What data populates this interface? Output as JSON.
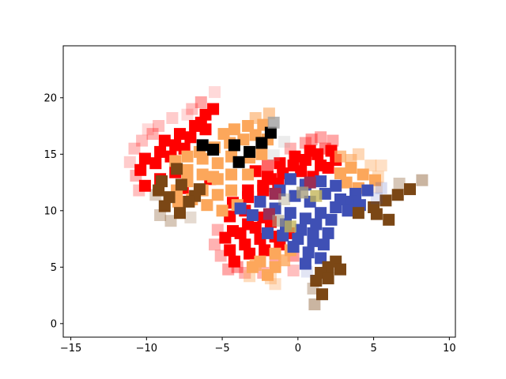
{
  "chart_data": {
    "type": "scatter",
    "title": "",
    "xlabel": "",
    "ylabel": "",
    "xlim": [
      -15.5,
      10.4
    ],
    "ylim": [
      -1.2,
      24.6
    ],
    "xticks": [
      -15,
      -10,
      -5,
      0,
      5,
      10
    ],
    "yticks": [
      0,
      5,
      10,
      15,
      20
    ],
    "grid": false,
    "legend": "none",
    "marker": "square",
    "palette": {
      "R": "#ff0000",
      "O": "#fca75b",
      "B": "#3f50b5",
      "K": "#000000",
      "N": "#7b4715",
      "C": "#9b2e55",
      "G": "#a89e7e",
      "Y": "#c4b55a",
      "S": "#a0a0a0"
    },
    "points": [
      [
        "R",
        -10.1,
        12.2,
        1
      ],
      [
        "R",
        -9.1,
        12.8,
        1
      ],
      [
        "R",
        -8.1,
        13.4,
        1
      ],
      [
        "R",
        -10.4,
        13.6,
        1
      ],
      [
        "R",
        -9.4,
        14.2,
        1
      ],
      [
        "R",
        -8.4,
        14.8,
        1
      ],
      [
        "R",
        -7.5,
        15.5,
        1
      ],
      [
        "R",
        -10.1,
        14.6,
        1
      ],
      [
        "R",
        -9.1,
        15.2,
        1
      ],
      [
        "R",
        -8.1,
        15.8,
        1
      ],
      [
        "R",
        -7.1,
        16.5,
        1
      ],
      [
        "R",
        -6.1,
        17.2,
        1
      ],
      [
        "R",
        -8.8,
        16.2,
        1
      ],
      [
        "R",
        -7.8,
        16.8,
        1
      ],
      [
        "R",
        -6.8,
        17.5,
        1
      ],
      [
        "R",
        -6.1,
        18.5,
        1
      ],
      [
        "R",
        -5.6,
        19.0,
        1
      ],
      [
        "R",
        -6.4,
        17.8,
        1
      ],
      [
        "R",
        -7.6,
        12.0,
        1
      ],
      [
        "R",
        -5.8,
        12.8,
        1
      ],
      [
        "R",
        -3.3,
        11.8,
        1
      ],
      [
        "R",
        -2.3,
        12.2,
        1
      ],
      [
        "R",
        -1.3,
        12.4,
        1
      ],
      [
        "R",
        -4.3,
        10.7,
        1
      ],
      [
        "R",
        -3.3,
        11.2,
        1
      ],
      [
        "R",
        -2.3,
        11.8,
        1
      ],
      [
        "R",
        -4.5,
        9.5,
        1
      ],
      [
        "R",
        -3.5,
        10.0,
        1
      ],
      [
        "R",
        -4.3,
        8.2,
        1
      ],
      [
        "R",
        -3.3,
        8.8,
        1
      ],
      [
        "R",
        -2.3,
        9.4,
        1
      ],
      [
        "R",
        -4.8,
        7.6,
        1
      ],
      [
        "R",
        -3.8,
        8.0,
        1
      ],
      [
        "R",
        -2.8,
        8.5,
        1
      ],
      [
        "R",
        -1.8,
        9.0,
        1
      ],
      [
        "R",
        -4.5,
        6.5,
        1
      ],
      [
        "R",
        -3.5,
        7.0,
        1
      ],
      [
        "R",
        -2.5,
        7.5,
        1
      ],
      [
        "R",
        -1.5,
        7.7,
        1
      ],
      [
        "R",
        -0.6,
        8.0,
        1
      ],
      [
        "R",
        -4.2,
        5.5,
        1
      ],
      [
        "R",
        -3.2,
        6.2,
        1
      ],
      [
        "R",
        -2.2,
        6.5,
        1
      ],
      [
        "R",
        -1.2,
        7.0,
        1
      ],
      [
        "R",
        -2.8,
        13.5,
        1
      ],
      [
        "R",
        -2.0,
        13.0,
        1
      ],
      [
        "R",
        -1.0,
        13.3,
        1
      ],
      [
        "R",
        -0.3,
        14.0,
        1
      ],
      [
        "R",
        0.5,
        14.5,
        1
      ],
      [
        "R",
        1.3,
        15.0,
        1
      ],
      [
        "R",
        2.2,
        15.3,
        1
      ],
      [
        "R",
        -1.2,
        14.2,
        1
      ],
      [
        "R",
        -0.2,
        14.8,
        1
      ],
      [
        "R",
        0.8,
        15.3,
        1
      ],
      [
        "R",
        1.5,
        14.0,
        1
      ],
      [
        "R",
        2.5,
        14.5,
        1
      ],
      [
        "R",
        -1.8,
        12.8,
        1
      ],
      [
        "R",
        0.2,
        13.5,
        1
      ],
      [
        "R",
        1.0,
        13.0,
        1
      ],
      [
        "R",
        2.0,
        13.8,
        1
      ],
      [
        "R",
        -2.0,
        14.0,
        0.6
      ],
      [
        "R",
        0.5,
        16.0,
        0.35
      ],
      [
        "R",
        1.5,
        16.5,
        0.35
      ],
      [
        "R",
        2.3,
        16.2,
        0.35
      ],
      [
        "R",
        -0.5,
        15.5,
        0.3
      ],
      [
        "R",
        1.8,
        15.5,
        0.5
      ],
      [
        "R",
        0.9,
        16.3,
        0.4
      ],
      [
        "R",
        -6.4,
        19.6,
        0.35
      ],
      [
        "R",
        -7.0,
        19.0,
        0.25
      ],
      [
        "R",
        -5.5,
        20.5,
        0.15
      ],
      [
        "R",
        -9.2,
        17.5,
        0.25
      ],
      [
        "R",
        -9.6,
        16.8,
        0.3
      ],
      [
        "R",
        -10.3,
        16.2,
        0.25
      ],
      [
        "R",
        -10.8,
        15.5,
        0.25
      ],
      [
        "R",
        -11.1,
        14.3,
        0.2
      ],
      [
        "R",
        -10.7,
        13.1,
        0.3
      ],
      [
        "R",
        -10.5,
        11.8,
        0.25
      ],
      [
        "R",
        -8.3,
        18.2,
        0.2
      ],
      [
        "R",
        -7.3,
        18.5,
        0.15
      ],
      [
        "R",
        -9.9,
        17.2,
        0.15
      ],
      [
        "R",
        -5.3,
        8.3,
        0.3
      ],
      [
        "R",
        -5.5,
        7.0,
        0.3
      ],
      [
        "R",
        -5.1,
        6.0,
        0.3
      ],
      [
        "R",
        -4.0,
        5.0,
        0.4
      ],
      [
        "R",
        -3.5,
        4.5,
        0.3
      ],
      [
        "R",
        -2.3,
        4.5,
        0.3
      ],
      [
        "R",
        -0.3,
        6.0,
        0.4
      ],
      [
        "R",
        -1.5,
        5.5,
        0.35
      ],
      [
        "R",
        -4.6,
        4.8,
        0.35
      ],
      [
        "R",
        -0.3,
        4.7,
        0.25
      ],
      [
        "O",
        -8.1,
        14.4,
        1
      ],
      [
        "O",
        -7.3,
        14.8,
        1
      ],
      [
        "O",
        -6.5,
        15.2,
        1
      ],
      [
        "O",
        -5.5,
        15.6,
        1
      ],
      [
        "O",
        -4.5,
        16.0,
        1
      ],
      [
        "O",
        -3.6,
        16.3,
        1
      ],
      [
        "O",
        -2.8,
        16.7,
        1
      ],
      [
        "O",
        -4.2,
        17.2,
        1
      ],
      [
        "O",
        -3.3,
        17.5,
        1
      ],
      [
        "O",
        -2.3,
        17.6,
        1
      ],
      [
        "O",
        -4.9,
        16.8,
        1
      ],
      [
        "O",
        -6.3,
        14.6,
        1
      ],
      [
        "O",
        -5.3,
        14.2,
        1
      ],
      [
        "O",
        -4.4,
        14.8,
        1
      ],
      [
        "O",
        -3.2,
        14.7,
        1
      ],
      [
        "O",
        -2.4,
        15.0,
        1
      ],
      [
        "O",
        -7.3,
        13.6,
        1
      ],
      [
        "O",
        -6.3,
        13.2,
        1
      ],
      [
        "O",
        -5.3,
        12.8,
        1
      ],
      [
        "O",
        -4.4,
        13.2,
        1
      ],
      [
        "O",
        -3.3,
        13.2,
        1
      ],
      [
        "O",
        -6.3,
        11.8,
        1
      ],
      [
        "O",
        -5.3,
        11.4,
        1
      ],
      [
        "O",
        -4.4,
        11.8,
        1
      ],
      [
        "O",
        -7.3,
        12.6,
        1
      ],
      [
        "O",
        -8.0,
        11.8,
        1
      ],
      [
        "O",
        -7.0,
        11.0,
        1
      ],
      [
        "O",
        -6.0,
        10.5,
        1
      ],
      [
        "O",
        -5.0,
        10.0,
        1
      ],
      [
        "O",
        -4.0,
        10.5,
        1
      ],
      [
        "O",
        -5.6,
        13.0,
        1
      ],
      [
        "O",
        -7.9,
        10.8,
        1
      ],
      [
        "O",
        -2.0,
        16.3,
        1
      ],
      [
        "O",
        -2.8,
        18.2,
        0.6
      ],
      [
        "O",
        -1.9,
        18.6,
        0.6
      ],
      [
        "O",
        -1.5,
        6.2,
        1
      ],
      [
        "O",
        -0.5,
        6.5,
        1
      ],
      [
        "O",
        -2.5,
        5.5,
        1
      ],
      [
        "O",
        -1.5,
        5.0,
        1
      ],
      [
        "O",
        -3.0,
        5.0,
        1
      ],
      [
        "O",
        -2.0,
        4.3,
        1
      ],
      [
        "O",
        -2.8,
        5.2,
        0.8
      ],
      [
        "O",
        -0.9,
        5.6,
        0.8
      ],
      [
        "O",
        -1.8,
        4.0,
        0.4
      ],
      [
        "O",
        -3.2,
        4.2,
        0.4
      ],
      [
        "O",
        -1.5,
        3.5,
        0.35
      ],
      [
        "O",
        3.5,
        13.8,
        1
      ],
      [
        "O",
        4.3,
        13.2,
        1
      ],
      [
        "O",
        5.1,
        12.7,
        1
      ],
      [
        "O",
        3.2,
        12.5,
        1
      ],
      [
        "O",
        4.0,
        12.0,
        1
      ],
      [
        "O",
        2.8,
        13.3,
        1
      ],
      [
        "O",
        2.8,
        14.8,
        0.7
      ],
      [
        "O",
        3.5,
        14.5,
        0.6
      ],
      [
        "O",
        4.0,
        15.0,
        0.45
      ],
      [
        "O",
        4.8,
        14.0,
        0.4
      ],
      [
        "O",
        5.5,
        14.0,
        0.35
      ],
      [
        "O",
        5.3,
        13.0,
        0.4
      ],
      [
        "O",
        5.2,
        12.1,
        0.25
      ],
      [
        "B",
        -0.5,
        12.8,
        1
      ],
      [
        "B",
        0.5,
        12.3,
        1
      ],
      [
        "B",
        1.5,
        12.6,
        1
      ],
      [
        "B",
        2.5,
        12.2,
        1
      ],
      [
        "B",
        -1.2,
        11.8,
        1
      ],
      [
        "B",
        -0.2,
        11.3,
        1
      ],
      [
        "B",
        0.8,
        10.8,
        1
      ],
      [
        "B",
        1.8,
        11.5,
        1
      ],
      [
        "B",
        2.8,
        11.0,
        1
      ],
      [
        "B",
        3.8,
        11.5,
        1
      ],
      [
        "B",
        4.6,
        11.8,
        1
      ],
      [
        "B",
        -2.5,
        10.8,
        1
      ],
      [
        "B",
        -1.5,
        10.2,
        1
      ],
      [
        "B",
        -0.5,
        9.8,
        1
      ],
      [
        "B",
        0.5,
        9.3,
        1
      ],
      [
        "B",
        1.5,
        9.8,
        1
      ],
      [
        "B",
        2.5,
        10.3,
        1
      ],
      [
        "B",
        3.5,
        10.8,
        1
      ],
      [
        "B",
        -3.8,
        10.2,
        1
      ],
      [
        "B",
        -3.0,
        9.6,
        1
      ],
      [
        "B",
        -0.8,
        8.8,
        1
      ],
      [
        "B",
        0.2,
        8.3,
        1
      ],
      [
        "B",
        1.2,
        8.8,
        1
      ],
      [
        "B",
        2.2,
        9.2,
        1
      ],
      [
        "B",
        -1.0,
        7.8,
        1
      ],
      [
        "B",
        0.0,
        7.5,
        1
      ],
      [
        "B",
        1.0,
        7.3,
        1
      ],
      [
        "B",
        2.0,
        8.0,
        1
      ],
      [
        "B",
        -0.3,
        6.8,
        1
      ],
      [
        "B",
        0.7,
        6.3,
        1
      ],
      [
        "B",
        1.7,
        7.0,
        1
      ],
      [
        "B",
        0.5,
        5.3,
        1
      ],
      [
        "B",
        1.5,
        5.8,
        1
      ],
      [
        "B",
        -2.0,
        8.0,
        1
      ],
      [
        "B",
        1.0,
        8.0,
        1
      ],
      [
        "B",
        3.3,
        10.0,
        1
      ],
      [
        "B",
        4.1,
        10.5,
        1
      ],
      [
        "B",
        5.5,
        12.0,
        0.2
      ],
      [
        "K",
        -6.3,
        15.8,
        1
      ],
      [
        "K",
        -5.6,
        15.4,
        1
      ],
      [
        "K",
        -4.2,
        15.8,
        1
      ],
      [
        "K",
        -3.2,
        15.2,
        1
      ],
      [
        "K",
        -2.4,
        16.0,
        1
      ],
      [
        "K",
        -1.8,
        16.9,
        1
      ],
      [
        "K",
        -3.9,
        14.3,
        1
      ],
      [
        "N",
        -8.0,
        13.7,
        1
      ],
      [
        "N",
        -9.0,
        12.6,
        1
      ],
      [
        "N",
        -7.7,
        12.3,
        1
      ],
      [
        "N",
        -9.2,
        11.8,
        1
      ],
      [
        "N",
        -6.5,
        11.9,
        1
      ],
      [
        "N",
        -8.5,
        11.2,
        1
      ],
      [
        "N",
        -6.8,
        11.3,
        1
      ],
      [
        "N",
        -8.8,
        10.4,
        1
      ],
      [
        "N",
        -7.8,
        9.8,
        1
      ],
      [
        "N",
        -7.2,
        10.8,
        1
      ],
      [
        "N",
        4.0,
        9.8,
        1
      ],
      [
        "N",
        5.0,
        10.3,
        1
      ],
      [
        "N",
        5.8,
        10.9,
        1
      ],
      [
        "N",
        6.6,
        11.4,
        1
      ],
      [
        "N",
        7.4,
        11.9,
        1
      ],
      [
        "N",
        5.2,
        9.7,
        1
      ],
      [
        "N",
        6.0,
        9.2,
        1
      ],
      [
        "N",
        2.5,
        5.5,
        1
      ],
      [
        "N",
        2.0,
        5.0,
        1
      ],
      [
        "N",
        1.5,
        4.5,
        1
      ],
      [
        "N",
        2.8,
        4.8,
        1
      ],
      [
        "N",
        1.2,
        3.8,
        1
      ],
      [
        "N",
        2.0,
        4.0,
        1
      ],
      [
        "N",
        1.6,
        2.6,
        1
      ],
      [
        "N",
        8.2,
        12.7,
        0.4
      ],
      [
        "N",
        6.7,
        12.4,
        0.3
      ],
      [
        "N",
        -9.1,
        9.6,
        0.3
      ],
      [
        "N",
        -8.4,
        9.1,
        0.3
      ],
      [
        "N",
        -7.1,
        9.4,
        0.2
      ],
      [
        "N",
        -9.4,
        11.4,
        0.25
      ],
      [
        "N",
        1.1,
        1.7,
        0.4
      ],
      [
        "N",
        1.0,
        3.1,
        0.3
      ],
      [
        "C",
        -1.5,
        11.5,
        1
      ],
      [
        "C",
        -1.9,
        9.7,
        1
      ],
      [
        "C",
        0.8,
        12.5,
        1
      ],
      [
        "G",
        0.3,
        11.6,
        0.8
      ],
      [
        "G",
        -1.3,
        9.1,
        0.6
      ],
      [
        "G",
        -0.9,
        11.0,
        0.4
      ],
      [
        "Y",
        1.2,
        11.3,
        0.8
      ],
      [
        "Y",
        -0.5,
        8.6,
        0.8
      ],
      [
        "S",
        -1.6,
        17.8,
        0.8
      ],
      [
        "S",
        -0.9,
        16.1,
        0.2
      ],
      [
        "S",
        -1.6,
        14.9,
        0.2
      ],
      [
        "B",
        0.6,
        4.6,
        0.15
      ],
      [
        "B",
        5.2,
        11.1,
        0.15
      ]
    ]
  }
}
